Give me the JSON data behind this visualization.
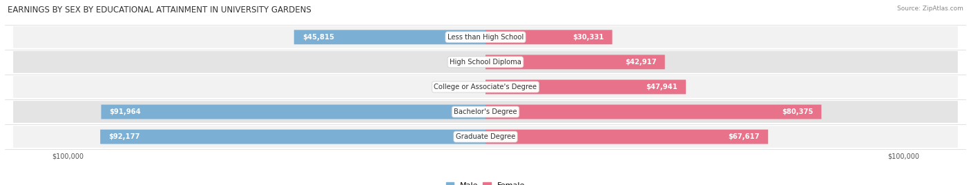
{
  "title": "EARNINGS BY SEX BY EDUCATIONAL ATTAINMENT IN UNIVERSITY GARDENS",
  "source": "Source: ZipAtlas.com",
  "categories": [
    "Less than High School",
    "High School Diploma",
    "College or Associate's Degree",
    "Bachelor's Degree",
    "Graduate Degree"
  ],
  "male_values": [
    45815,
    0,
    0,
    91964,
    92177
  ],
  "female_values": [
    30331,
    42917,
    47941,
    80375,
    67617
  ],
  "male_color": "#7bafd4",
  "female_color": "#e8728a",
  "max_value": 100000,
  "row_bg_light": "#f2f2f2",
  "row_bg_dark": "#e4e4e4",
  "label_fontsize": 7.2,
  "title_fontsize": 8.5,
  "value_fontsize": 7.2,
  "source_fontsize": 6.5
}
